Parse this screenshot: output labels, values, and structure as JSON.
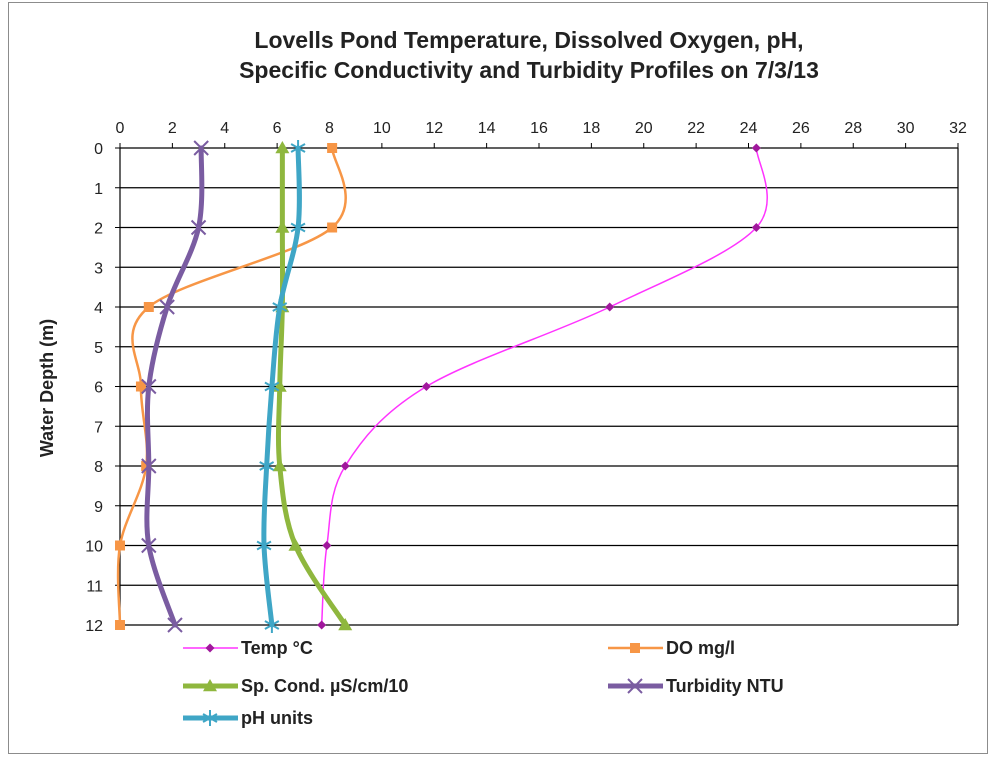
{
  "chart_data": {
    "type": "line",
    "title_line1": "Lovells Pond Temperature, Dissolved  Oxygen, pH,",
    "title_line2": "Specific Conductivity  and Turbidity Profiles on 7/3/13",
    "xlabel": "",
    "ylabel": "Water Depth (m)",
    "xlim": [
      0,
      32
    ],
    "ylim": [
      0,
      12
    ],
    "y_reversed": true,
    "x_ticks": [
      0,
      2,
      4,
      6,
      8,
      10,
      12,
      14,
      16,
      18,
      20,
      22,
      24,
      26,
      28,
      30,
      32
    ],
    "y_ticks": [
      0,
      1,
      2,
      3,
      4,
      5,
      6,
      7,
      8,
      9,
      10,
      11,
      12
    ],
    "grid": "horizontal",
    "legend_position": "bottom",
    "series": [
      {
        "name": "Temp °C",
        "color": "#ff33ff",
        "marker_color": "#a0189c",
        "marker": "diamond",
        "points": [
          [
            24.3,
            0
          ],
          [
            24.3,
            2
          ],
          [
            18.7,
            4
          ],
          [
            11.7,
            6
          ],
          [
            8.6,
            8
          ],
          [
            7.9,
            10
          ],
          [
            7.7,
            12
          ]
        ]
      },
      {
        "name": "DO mg/l",
        "color": "#f79646",
        "marker_color": "#f79646",
        "marker": "square",
        "points": [
          [
            8.1,
            0
          ],
          [
            8.1,
            2
          ],
          [
            1.1,
            4
          ],
          [
            0.8,
            6
          ],
          [
            1.0,
            8
          ],
          [
            0.0,
            10
          ],
          [
            0.0,
            12
          ]
        ]
      },
      {
        "name": "Sp. Cond. µS/cm/10",
        "color": "#8fb73e",
        "marker_color": "#8fb73e",
        "marker": "triangle",
        "points": [
          [
            6.2,
            0
          ],
          [
            6.2,
            2
          ],
          [
            6.2,
            4
          ],
          [
            6.1,
            6
          ],
          [
            6.1,
            8
          ],
          [
            6.7,
            10
          ],
          [
            8.6,
            12
          ]
        ]
      },
      {
        "name": "Turbidity NTU",
        "color": "#7a5ca1",
        "marker_color": "#7a5ca1",
        "marker": "x",
        "points": [
          [
            3.1,
            0
          ],
          [
            3.0,
            2
          ],
          [
            1.8,
            4
          ],
          [
            1.1,
            6
          ],
          [
            1.1,
            8
          ],
          [
            1.1,
            10
          ],
          [
            2.1,
            12
          ]
        ]
      },
      {
        "name": "pH units",
        "color": "#3fa6c6",
        "marker_color": "#3fa6c6",
        "marker": "star",
        "points": [
          [
            6.8,
            0
          ],
          [
            6.8,
            2
          ],
          [
            6.1,
            4
          ],
          [
            5.8,
            6
          ],
          [
            5.6,
            8
          ],
          [
            5.5,
            10
          ],
          [
            5.8,
            12
          ]
        ]
      }
    ]
  }
}
